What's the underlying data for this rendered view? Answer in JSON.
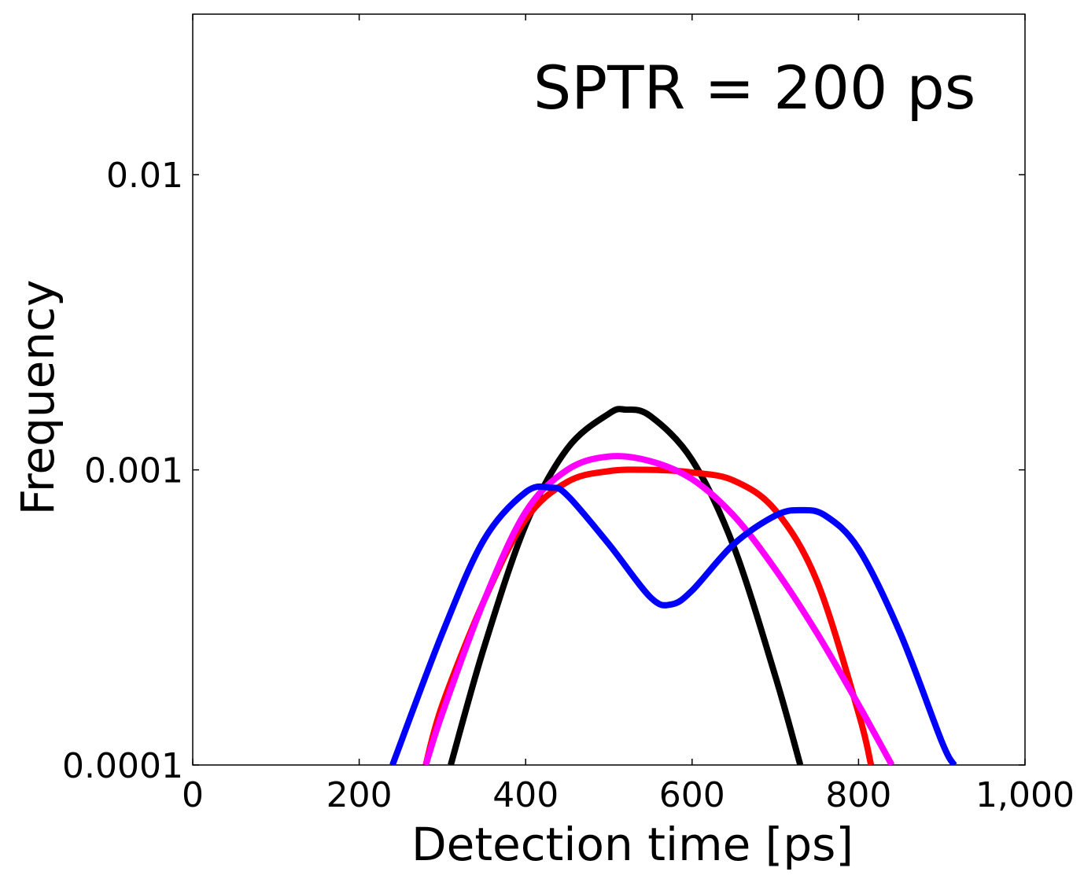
{
  "chart_data": {
    "type": "line",
    "title": "",
    "annotation": "SPTR = 200 ps",
    "xlabel": "Detection time [ps]",
    "ylabel": "Frequency",
    "xlim": [
      0,
      1000
    ],
    "ylim": [
      0.0001,
      0.035
    ],
    "yscale": "log",
    "grid": false,
    "legend": "none",
    "x_ticks": [
      0,
      200,
      400,
      600,
      800,
      1000
    ],
    "x_tick_labels": [
      "0",
      "200",
      "400",
      "600",
      "800",
      "1,000"
    ],
    "y_ticks": [
      0.0001,
      0.001,
      0.01
    ],
    "y_tick_labels": [
      "0.0001",
      "0.001",
      "0.01"
    ],
    "series": [
      {
        "name": "black",
        "color": "#000000",
        "x": [
          310,
          350,
          400,
          450,
          500,
          520,
          550,
          600,
          650,
          700,
          730
        ],
        "y": [
          0.0001,
          0.00025,
          0.00065,
          0.00118,
          0.00155,
          0.0016,
          0.00152,
          0.00108,
          0.00055,
          0.0002,
          0.0001
        ]
      },
      {
        "name": "red",
        "color": "#ff0000",
        "x": [
          280,
          300,
          350,
          400,
          450,
          500,
          550,
          600,
          650,
          700,
          750,
          800,
          815
        ],
        "y": [
          0.0001,
          0.00016,
          0.00036,
          0.00068,
          0.00091,
          0.00099,
          0.001,
          0.00098,
          0.00092,
          0.00073,
          0.00042,
          0.00015,
          0.0001
        ]
      },
      {
        "name": "magenta",
        "color": "#ff00ff",
        "x": [
          280,
          300,
          350,
          400,
          450,
          500,
          550,
          600,
          650,
          700,
          750,
          800,
          840
        ],
        "y": [
          0.0001,
          0.00015,
          0.00036,
          0.00072,
          0.001,
          0.00111,
          0.00107,
          0.00093,
          0.0007,
          0.00046,
          0.00028,
          0.00016,
          0.0001
        ]
      },
      {
        "name": "blue",
        "color": "#0000ff",
        "x": [
          240,
          300,
          350,
          400,
          430,
          450,
          500,
          550,
          575,
          600,
          650,
          700,
          730,
          760,
          800,
          850,
          900,
          915
        ],
        "y": [
          0.0001,
          0.00028,
          0.00058,
          0.00084,
          0.00087,
          0.00082,
          0.00056,
          0.00037,
          0.00035,
          0.00039,
          0.00056,
          0.0007,
          0.00073,
          0.0007,
          0.00054,
          0.00028,
          0.00012,
          0.0001
        ]
      }
    ]
  }
}
